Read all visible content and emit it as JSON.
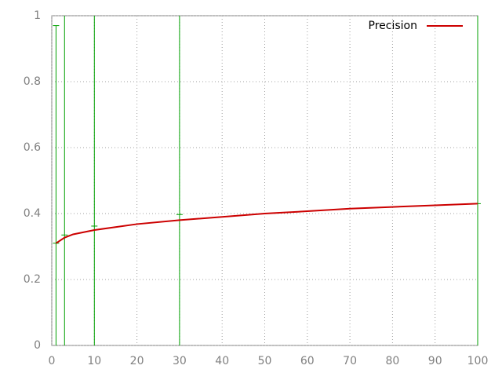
{
  "chart_data": {
    "type": "line",
    "x": [
      1,
      3,
      5,
      10,
      20,
      30,
      40,
      50,
      60,
      70,
      80,
      90,
      100
    ],
    "series": [
      {
        "name": "Precision",
        "color": "#cc0000",
        "values": [
          0.31,
          0.327,
          0.337,
          0.35,
          0.368,
          0.38,
          0.39,
          0.4,
          0.407,
          0.415,
          0.42,
          0.425,
          0.43
        ]
      }
    ],
    "errorbars": {
      "color": "#00a000",
      "x": [
        1,
        3,
        10,
        30,
        100
      ],
      "values": [
        0.31,
        0.335,
        0.362,
        0.397,
        0.43
      ],
      "errors": [
        0.66,
        0.7,
        0.7,
        0.7,
        0.7
      ]
    },
    "xlim": [
      0,
      100
    ],
    "xticks": [
      0,
      10,
      20,
      30,
      40,
      50,
      60,
      70,
      80,
      90,
      100
    ],
    "ylim": [
      0,
      1
    ],
    "yticks": [
      0,
      0.2,
      0.4,
      0.6,
      0.8,
      1
    ],
    "grid": true,
    "legend": "top-right"
  }
}
